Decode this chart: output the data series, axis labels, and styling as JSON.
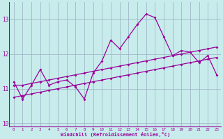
{
  "x": [
    0,
    1,
    2,
    3,
    4,
    5,
    6,
    7,
    8,
    9,
    10,
    11,
    12,
    13,
    14,
    15,
    16,
    17,
    18,
    19,
    20,
    21,
    22,
    23
  ],
  "y_main": [
    11.2,
    10.7,
    11.1,
    11.55,
    11.1,
    11.2,
    11.25,
    11.05,
    10.7,
    11.45,
    11.8,
    12.4,
    12.15,
    12.5,
    12.85,
    13.15,
    13.05,
    12.5,
    11.95,
    12.1,
    12.05,
    11.75,
    11.95,
    11.4
  ],
  "y_upper": [
    11.1,
    11.1,
    11.15,
    11.2,
    11.25,
    11.3,
    11.35,
    11.4,
    11.45,
    11.5,
    11.55,
    11.6,
    11.65,
    11.7,
    11.75,
    11.8,
    11.85,
    11.9,
    11.95,
    12.0,
    12.05,
    12.1,
    12.15,
    12.2
  ],
  "y_lower": [
    10.75,
    10.8,
    10.85,
    10.9,
    10.95,
    11.0,
    11.05,
    11.1,
    11.15,
    11.2,
    11.25,
    11.3,
    11.35,
    11.4,
    11.45,
    11.5,
    11.55,
    11.6,
    11.65,
    11.7,
    11.75,
    11.8,
    11.85,
    11.9
  ],
  "color": "#990099",
  "bg_color": "#c8ecec",
  "grid_color": "#a0b8c8",
  "ylim": [
    9.9,
    13.5
  ],
  "yticks": [
    10,
    11,
    12,
    13
  ],
  "xlabel": "Windchill (Refroidissement éolien,°C)"
}
